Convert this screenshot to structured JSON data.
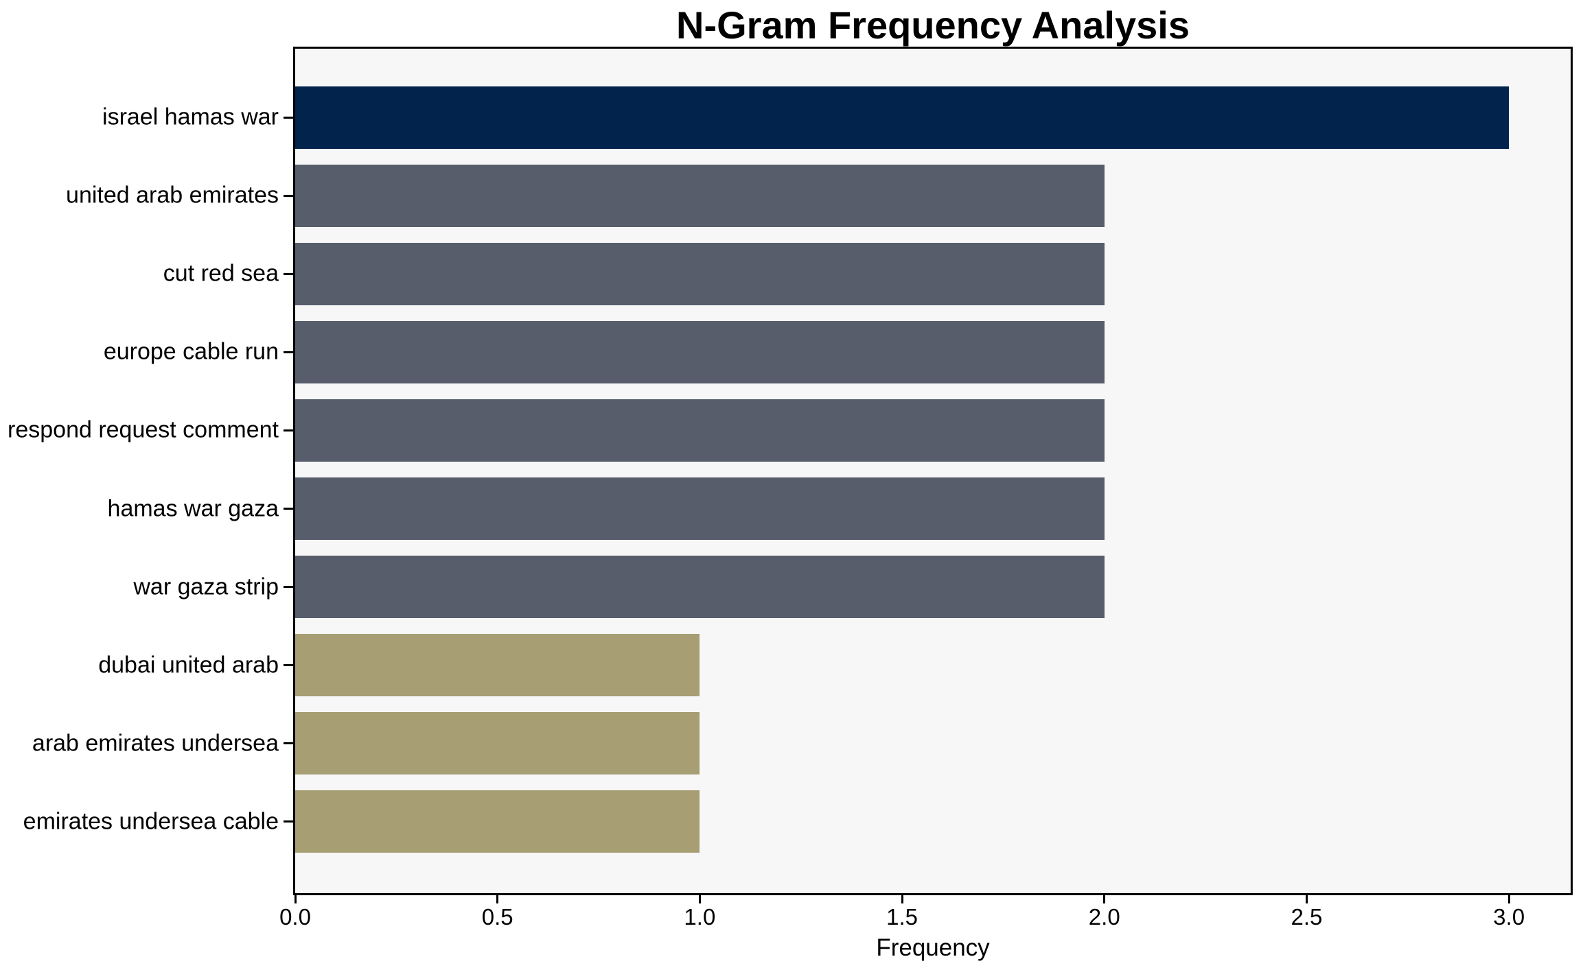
{
  "chart_data": {
    "type": "bar",
    "orientation": "horizontal",
    "title": "N-Gram Frequency Analysis",
    "xlabel": "Frequency",
    "ylabel": "",
    "categories": [
      "israel hamas war",
      "united arab emirates",
      "cut red sea",
      "europe cable run",
      "respond request comment",
      "hamas war gaza",
      "war gaza strip",
      "dubai united arab",
      "arab emirates undersea",
      "emirates undersea cable"
    ],
    "values": [
      3,
      2,
      2,
      2,
      2,
      2,
      2,
      1,
      1,
      1
    ],
    "bar_colors": [
      "#02234c",
      "#575d6b",
      "#575d6b",
      "#575d6b",
      "#575d6b",
      "#575d6b",
      "#575d6b",
      "#a79e73",
      "#a79e73",
      "#a79e73"
    ],
    "x_tick_values": [
      0,
      0.5,
      1.0,
      1.5,
      2.0,
      2.5,
      3.0
    ],
    "x_tick_labels": [
      "0.0",
      "0.5",
      "1.0",
      "1.5",
      "2.0",
      "2.5",
      "3.0"
    ],
    "xlim": [
      0,
      3.1525
    ],
    "grid": false,
    "legend": null,
    "colors": {
      "plot_background": "#f7f7f8",
      "figure_background": "#ffffff",
      "axis": "#000000",
      "text": "#000000"
    }
  }
}
